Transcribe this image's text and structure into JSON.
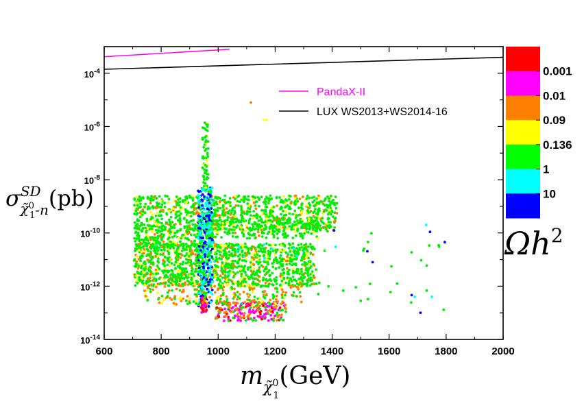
{
  "chart_data": {
    "type": "scatter",
    "x_scale": "linear",
    "y_scale": "log",
    "xlim": [
      600,
      2000
    ],
    "ylim_exp": [
      -14,
      -3
    ],
    "x_ticks": [
      {
        "value": 600,
        "label": "600"
      },
      {
        "value": 800,
        "label": "800"
      },
      {
        "value": 1000,
        "label": "1000"
      },
      {
        "value": 1200,
        "label": "1200"
      },
      {
        "value": 1400,
        "label": "1400"
      },
      {
        "value": 1600,
        "label": "1600"
      },
      {
        "value": 1800,
        "label": "1800"
      },
      {
        "value": 2000,
        "label": "2000"
      }
    ],
    "y_ticks": [
      {
        "exp": -14,
        "base": "10",
        "sup": "-14"
      },
      {
        "exp": -12,
        "base": "10",
        "sup": "-12"
      },
      {
        "exp": -10,
        "base": "10",
        "sup": "-10"
      },
      {
        "exp": -8,
        "base": "10",
        "sup": "-8"
      },
      {
        "exp": -6,
        "base": "10",
        "sup": "-6"
      },
      {
        "exp": -4,
        "base": "10",
        "sup": "-4"
      }
    ],
    "xlabel": {
      "main": "m",
      "sub": "χ̃",
      "subsup": "0",
      "subsub": "1",
      "tail": "(GeV)"
    },
    "ylabel": {
      "main": "σ",
      "sup": "SD",
      "sub": "χ̃",
      "subsup": "0",
      "subsub": "1",
      "subtail": "-n",
      "tail": "(pb)"
    },
    "legend": [
      {
        "name": "PandaX-II",
        "color": "#ff00ff",
        "text_color": "#ff00ff"
      },
      {
        "name": "LUX WS2013+WS2014-16",
        "color": "#000000",
        "text_color": "#000000"
      }
    ],
    "limit_lines": [
      {
        "name": "PandaX-II",
        "color": "#ff00ff",
        "x": [
          600,
          1040
        ],
        "log10_y": [
          -3.38,
          -3.1
        ]
      },
      {
        "name": "LUX WS2013+WS2014-16",
        "color": "#000000",
        "x": [
          600,
          2000
        ],
        "log10_y": [
          -3.85,
          -3.4
        ]
      }
    ],
    "colorbar": {
      "title": {
        "main": "Ωh",
        "sup": "2"
      },
      "segments": [
        "#ff0000",
        "#ff00ff",
        "#ff8000",
        "#ffff00",
        "#00ff00",
        "#00ffff",
        "#0000ff"
      ],
      "labels": [
        "0.001",
        "0.01",
        "0.09",
        "0.136",
        "1",
        "10"
      ]
    },
    "point_colors": {
      "green": "#00ee00",
      "orange": "#ff8000",
      "yellow": "#ffff00",
      "cyan": "#00ffff",
      "blue": "#0000ff",
      "magenta": "#ff00ff",
      "red": "#ff0000"
    },
    "point_regions": [
      {
        "x": [
          705,
          1420
        ],
        "log10_y": [
          -9.9,
          -8.6
        ],
        "n": 900,
        "mix": {
          "green": 0.78,
          "orange": 0.1,
          "yellow": 0.12
        }
      },
      {
        "x": [
          705,
          1340
        ],
        "log10_y": [
          -12.0,
          -10.4
        ],
        "n": 1300,
        "mix": {
          "green": 0.72,
          "orange": 0.14,
          "yellow": 0.12,
          "cyan": 0.02
        }
      },
      {
        "x": [
          705,
          1000
        ],
        "log10_y": [
          -10.6,
          -9.8
        ],
        "n": 250,
        "mix": {
          "green": 0.75,
          "orange": 0.1,
          "yellow": 0.15
        }
      },
      {
        "x": [
          930,
          980
        ],
        "log10_y": [
          -12.8,
          -8.3
        ],
        "n": 380,
        "mix": {
          "cyan": 0.45,
          "blue": 0.35,
          "green": 0.2
        }
      },
      {
        "x": [
          945,
          965
        ],
        "log10_y": [
          -8.3,
          -5.8
        ],
        "n": 60,
        "mix": {
          "green": 0.9,
          "yellow": 0.1
        }
      },
      {
        "x": [
          990,
          1240
        ],
        "log10_y": [
          -13.3,
          -12.6
        ],
        "n": 220,
        "mix": {
          "magenta": 0.35,
          "orange": 0.3,
          "green": 0.2,
          "red": 0.15
        }
      },
      {
        "x": [
          940,
          960
        ],
        "log10_y": [
          -13.0,
          -12.4
        ],
        "n": 40,
        "mix": {
          "red": 0.5,
          "magenta": 0.5
        }
      },
      {
        "x": [
          740,
          1300
        ],
        "log10_y": [
          -12.7,
          -11.9
        ],
        "n": 220,
        "mix": {
          "orange": 0.45,
          "green": 0.4,
          "yellow": 0.15
        }
      },
      {
        "x": [
          980,
          1360
        ],
        "log10_y": [
          -10.2,
          -9.5
        ],
        "n": 200,
        "mix": {
          "green": 0.85,
          "orange": 0.05,
          "yellow": 0.1
        }
      },
      {
        "x": [
          1340,
          1800
        ],
        "log10_y": [
          -13.0,
          -9.8
        ],
        "n": 35,
        "mix": {
          "green": 0.75,
          "cyan": 0.12,
          "blue": 0.13
        }
      }
    ],
    "point_singles": [
      {
        "x": 1115,
        "log10_y": -5.1,
        "color": "orange"
      },
      {
        "x": 1160,
        "log10_y": -5.75,
        "color": "yellow"
      },
      {
        "x": 1170,
        "log10_y": -5.75,
        "color": "yellow"
      },
      {
        "x": 1730,
        "log10_y": -9.7,
        "color": "cyan"
      },
      {
        "x": 1710,
        "log10_y": -13.0,
        "color": "blue"
      },
      {
        "x": 1690,
        "log10_y": -12.4,
        "color": "cyan"
      },
      {
        "x": 1750,
        "log10_y": -12.4,
        "color": "cyan"
      }
    ]
  }
}
